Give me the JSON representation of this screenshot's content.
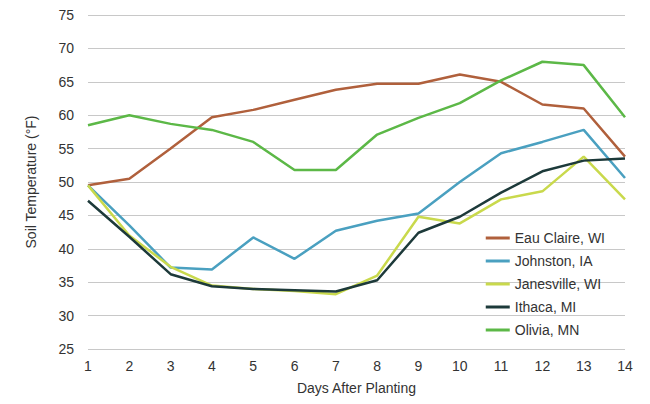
{
  "chart_data": {
    "type": "line",
    "x_label": "Days After Planting",
    "y_label": "Soil Temperature (°F)",
    "categories": [
      1,
      2,
      3,
      4,
      5,
      6,
      7,
      8,
      9,
      10,
      11,
      12,
      13,
      14
    ],
    "series": [
      {
        "name": "Eau Claire, WI",
        "color": "#b0603c",
        "values": [
          49.5,
          50.5,
          55.0,
          59.7,
          60.8,
          62.3,
          63.8,
          64.7,
          64.7,
          66.1,
          65.0,
          61.6,
          61.0,
          53.8
        ]
      },
      {
        "name": "Johnston, IA",
        "color": "#4aa0c0",
        "values": [
          49.5,
          43.5,
          37.2,
          36.9,
          41.7,
          38.5,
          42.7,
          44.2,
          45.3,
          50.0,
          54.3,
          56.0,
          57.8,
          50.6
        ]
      },
      {
        "name": "Janesville, WI",
        "color": "#c9d94c",
        "values": [
          49.5,
          42.0,
          37.3,
          34.5,
          34.0,
          33.7,
          33.2,
          36.0,
          44.8,
          43.8,
          47.4,
          48.6,
          53.8,
          47.4
        ]
      },
      {
        "name": "Ithaca, MI",
        "color": "#1d3a3a",
        "values": [
          47.2,
          41.8,
          36.2,
          34.4,
          34.0,
          33.8,
          33.6,
          35.3,
          42.4,
          44.8,
          48.4,
          51.6,
          53.2,
          53.5
        ]
      },
      {
        "name": "Olivia, MN",
        "color": "#5cb847",
        "values": [
          58.5,
          60.0,
          58.7,
          57.8,
          56.0,
          51.8,
          51.8,
          57.1,
          59.6,
          61.8,
          65.2,
          68.0,
          67.5,
          59.7
        ]
      }
    ],
    "ylim": [
      25,
      75
    ],
    "yticks": [
      25,
      30,
      35,
      40,
      45,
      50,
      55,
      60,
      65,
      70,
      75
    ],
    "grid": true,
    "legend": "lower right",
    "marker": "none",
    "line_style": "solid"
  }
}
